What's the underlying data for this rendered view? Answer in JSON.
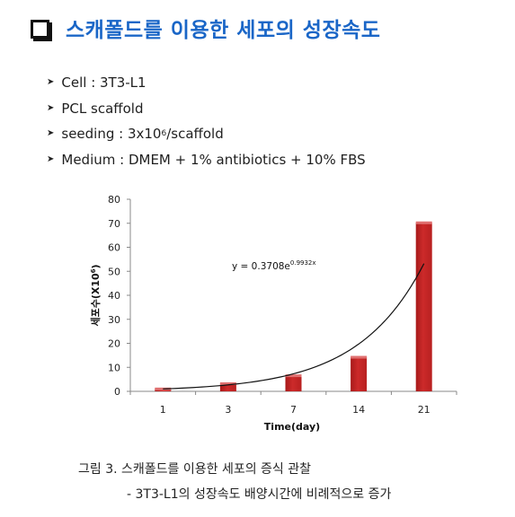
{
  "title": "스캐폴드를 이용한 세포의 성장속도",
  "bullets": [
    {
      "text": "Cell : 3T3-L1"
    },
    {
      "text": "PCL scaffold"
    },
    {
      "text": "seeding : 3x10",
      "sup": "6",
      "after": "/scaffold"
    },
    {
      "text": "Medium : DMEM + 1% antibiotics + 10% FBS"
    }
  ],
  "chart_data": {
    "type": "bar",
    "categories": [
      "1",
      "3",
      "7",
      "14",
      "21"
    ],
    "values": [
      1,
      3.2,
      6.5,
      14.2,
      70.2
    ],
    "xlabel": "Time(day)",
    "ylabel_main": "세포수(X10",
    "ylabel_sup": "6",
    "ylabel_end": ")",
    "ylim": [
      0,
      80
    ],
    "yticks": [
      0,
      10,
      20,
      30,
      40,
      50,
      60,
      70,
      80
    ],
    "grid": false,
    "bar_color": "#cc2a2a",
    "trendline": {
      "type": "exponential",
      "a": 0.3708,
      "b": 0.9932,
      "label": "y = 0.3708e",
      "label_sup": "0.9932x"
    }
  },
  "caption": {
    "line1": "그림 3. 스캐폴드를 이용한 세포의 증식 관찰",
    "line2": "- 3T3-L1의 성장속도 배양시간에 비례적으로 증가"
  }
}
